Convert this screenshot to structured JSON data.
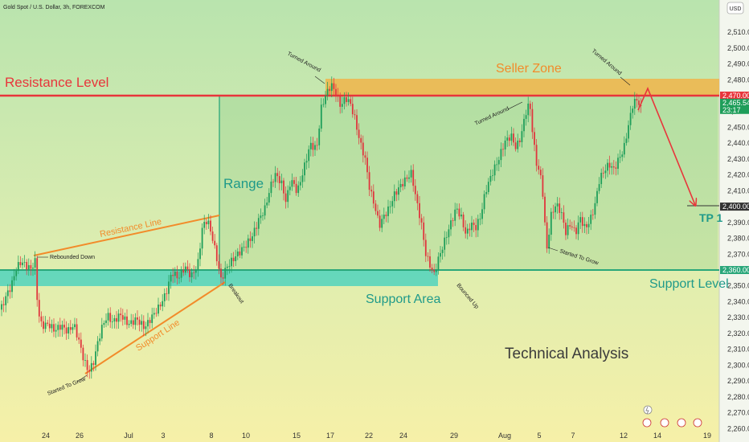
{
  "header": {
    "symbol_title": "Gold Spot / U.S. Dollar, 3h, FOREXCOM"
  },
  "currency_button": "USD",
  "colors": {
    "resistance": "#e8353b",
    "support": "#2aa77a",
    "orange": "#f28b2a",
    "up": "#1e9e5a",
    "down": "#e0353d",
    "seller_fill": "#f0b44a",
    "support_fill": "#3ccfbf"
  },
  "chart_data": {
    "type": "candlestick",
    "title": "",
    "ylabel": "",
    "xlabel": "",
    "ylim": [
      2250,
      2520
    ],
    "y_ticks": [
      2260,
      2270,
      2280,
      2290,
      2300,
      2310,
      2320,
      2330,
      2340,
      2350,
      2360,
      2370,
      2380,
      2390,
      2400,
      2410,
      2420,
      2430,
      2440,
      2450,
      2460,
      2470,
      2480,
      2490,
      2500,
      2510
    ],
    "y_tick_labels": [
      "2,260.00",
      "2,270.00",
      "2,280.00",
      "2,290.00",
      "2,300.00",
      "2,310.00",
      "2,320.00",
      "2,330.00",
      "2,340.00",
      "2,350.00",
      "2,360.00",
      "2,370.00",
      "2,380.00",
      "2,390.00",
      "2,400.00",
      "2,410.00",
      "2,420.00",
      "2,430.00",
      "2,440.00",
      "2,450.00",
      "2,460.00",
      "2,470.00",
      "2,480.00",
      "2,490.00",
      "2,500.00",
      "2,510.00"
    ],
    "x_ticks": [
      "24",
      "26",
      "Jul",
      "3",
      "8",
      "10",
      "15",
      "17",
      "22",
      "24",
      "29",
      "Aug",
      "5",
      "7",
      "12",
      "14",
      "19"
    ],
    "price_tags": [
      {
        "label": "2,470.00",
        "value": 2470,
        "color": "#e8353b"
      },
      {
        "label": "2,465.54",
        "value": 2465.5,
        "color": "#1e9e5a"
      },
      {
        "label": "23:17",
        "value": 2461,
        "color": "#1e9e5a"
      },
      {
        "label": "2,400.00",
        "value": 2400,
        "color": "#333333"
      },
      {
        "label": "2,360.00",
        "value": 2360,
        "color": "#2aa77a"
      }
    ],
    "price_path": [
      [
        0,
        2335
      ],
      [
        8,
        2345
      ],
      [
        14,
        2350
      ],
      [
        20,
        2360
      ],
      [
        26,
        2364
      ],
      [
        32,
        2362
      ],
      [
        38,
        2360
      ],
      [
        44,
        2366
      ],
      [
        47,
        2335
      ],
      [
        52,
        2326
      ],
      [
        60,
        2327
      ],
      [
        68,
        2322
      ],
      [
        76,
        2324
      ],
      [
        84,
        2320
      ],
      [
        92,
        2325
      ],
      [
        98,
        2316
      ],
      [
        104,
        2305
      ],
      [
        110,
        2297
      ],
      [
        116,
        2302
      ],
      [
        122,
        2315
      ],
      [
        128,
        2325
      ],
      [
        134,
        2330
      ],
      [
        140,
        2326
      ],
      [
        150,
        2332
      ],
      [
        160,
        2327
      ],
      [
        170,
        2330
      ],
      [
        180,
        2323
      ],
      [
        190,
        2330
      ],
      [
        198,
        2336
      ],
      [
        206,
        2345
      ],
      [
        214,
        2360
      ],
      [
        222,
        2356
      ],
      [
        230,
        2362
      ],
      [
        238,
        2355
      ],
      [
        246,
        2362
      ],
      [
        252,
        2387
      ],
      [
        258,
        2392
      ],
      [
        264,
        2382
      ],
      [
        270,
        2368
      ],
      [
        275,
        2355
      ],
      [
        282,
        2362
      ],
      [
        290,
        2366
      ],
      [
        298,
        2370
      ],
      [
        306,
        2375
      ],
      [
        314,
        2382
      ],
      [
        322,
        2393
      ],
      [
        330,
        2400
      ],
      [
        336,
        2412
      ],
      [
        342,
        2420
      ],
      [
        350,
        2414
      ],
      [
        356,
        2402
      ],
      [
        362,
        2417
      ],
      [
        370,
        2410
      ],
      [
        378,
        2425
      ],
      [
        386,
        2440
      ],
      [
        394,
        2436
      ],
      [
        400,
        2462
      ],
      [
        406,
        2470
      ],
      [
        412,
        2476
      ],
      [
        418,
        2472
      ],
      [
        424,
        2464
      ],
      [
        430,
        2470
      ],
      [
        436,
        2466
      ],
      [
        442,
        2455
      ],
      [
        448,
        2440
      ],
      [
        454,
        2430
      ],
      [
        460,
        2410
      ],
      [
        466,
        2400
      ],
      [
        472,
        2388
      ],
      [
        478,
        2395
      ],
      [
        484,
        2400
      ],
      [
        490,
        2408
      ],
      [
        496,
        2412
      ],
      [
        504,
        2416
      ],
      [
        512,
        2420
      ],
      [
        518,
        2403
      ],
      [
        524,
        2390
      ],
      [
        530,
        2370
      ],
      [
        536,
        2363
      ],
      [
        540,
        2358
      ],
      [
        544,
        2366
      ],
      [
        550,
        2374
      ],
      [
        556,
        2382
      ],
      [
        562,
        2390
      ],
      [
        568,
        2398
      ],
      [
        574,
        2392
      ],
      [
        580,
        2382
      ],
      [
        586,
        2390
      ],
      [
        592,
        2388
      ],
      [
        598,
        2395
      ],
      [
        604,
        2410
      ],
      [
        612,
        2420
      ],
      [
        620,
        2428
      ],
      [
        628,
        2440
      ],
      [
        636,
        2445
      ],
      [
        642,
        2438
      ],
      [
        648,
        2445
      ],
      [
        654,
        2460
      ],
      [
        659,
        2466
      ],
      [
        664,
        2440
      ],
      [
        668,
        2425
      ],
      [
        672,
        2420
      ],
      [
        676,
        2405
      ],
      [
        680,
        2370
      ],
      [
        686,
        2395
      ],
      [
        692,
        2402
      ],
      [
        698,
        2398
      ],
      [
        704,
        2385
      ],
      [
        710,
        2390
      ],
      [
        716,
        2383
      ],
      [
        722,
        2392
      ],
      [
        728,
        2385
      ],
      [
        734,
        2390
      ],
      [
        740,
        2400
      ],
      [
        746,
        2418
      ],
      [
        752,
        2424
      ],
      [
        758,
        2428
      ],
      [
        764,
        2424
      ],
      [
        770,
        2430
      ],
      [
        776,
        2435
      ],
      [
        782,
        2450
      ],
      [
        788,
        2465
      ],
      [
        794,
        2467
      ],
      [
        798,
        2461
      ],
      [
        802,
        2465
      ]
    ]
  },
  "annotations": {
    "resistance_level": "Resistance Level",
    "seller_zone": "Seller Zone",
    "range": "Range",
    "resistance_line": "Resistance Line",
    "support_line": "Support Line",
    "support_area": "Support Area",
    "support_level": "Support Level",
    "tp1": "TP 1",
    "technical_analysis": "Technical Analysis",
    "rebounded_down": "Rebounded Down",
    "started_to_grow_1": "Started To Grow",
    "breakout": "Breakout",
    "turned_around_1": "Turned Around",
    "bounced_up": "Bounced Up",
    "turned_around_2": "Turned Around",
    "started_to_grow_2": "Started To Grow",
    "turned_around_3": "Turned Around"
  }
}
